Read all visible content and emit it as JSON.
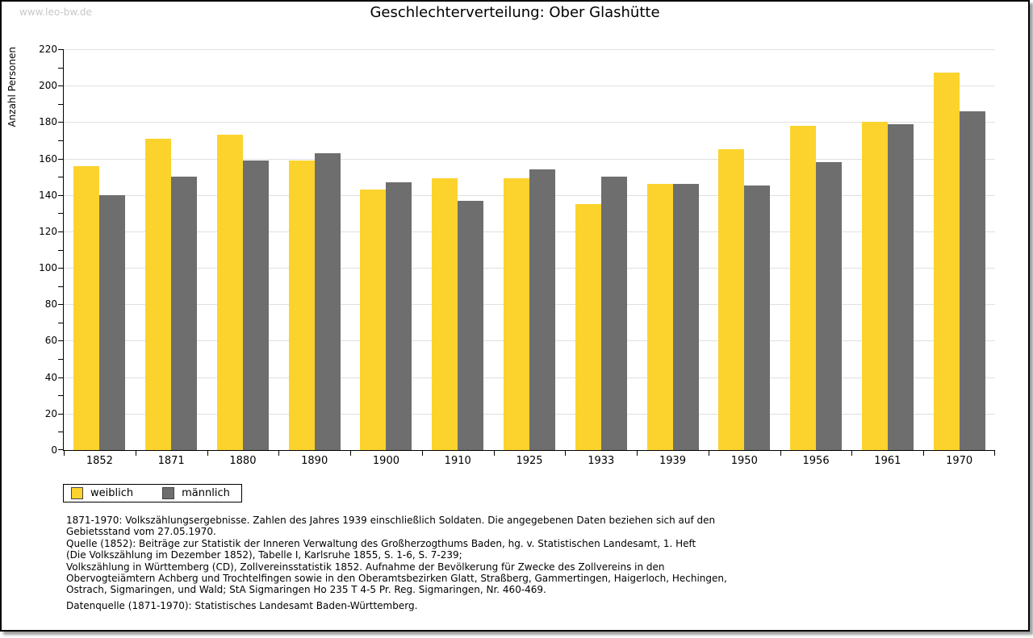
{
  "watermark": "www.leo-bw.de",
  "chart_data": {
    "type": "bar",
    "title": "Geschlechterverteilung: Ober Glashütte",
    "ylabel": "Anzahl Personen",
    "xlabel": "",
    "ylim": [
      0,
      220
    ],
    "ytick_step": 20,
    "yminor_step": 10,
    "grid": true,
    "legend_position": "bottom-left",
    "categories": [
      "1852",
      "1871",
      "1880",
      "1890",
      "1900",
      "1910",
      "1925",
      "1933",
      "1939",
      "1950",
      "1956",
      "1961",
      "1970"
    ],
    "series": [
      {
        "name": "weiblich",
        "color": "#FCD32D",
        "values": [
          156,
          171,
          173,
          159,
          143,
          149,
          149,
          135,
          146,
          165,
          178,
          180,
          207
        ]
      },
      {
        "name": "männlich",
        "color": "#6E6E6E",
        "values": [
          140,
          150,
          159,
          163,
          147,
          137,
          154,
          150,
          146,
          145,
          158,
          179,
          186
        ]
      }
    ]
  },
  "footer": {
    "lines": [
      "1871-1970: Volkszählungsergebnisse. Zahlen des Jahres 1939 einschließlich Soldaten. Die angegebenen Daten beziehen sich auf den",
      "Gebietsstand vom 27.05.1970.",
      "Quelle (1852): Beiträge zur Statistik der Inneren Verwaltung des Großherzogthums Baden, hg. v. Statistischen Landesamt, 1. Heft",
      "(Die Volkszählung im Dezember 1852), Tabelle I, Karlsruhe 1855, S. 1-6, S. 7-239;",
      "Volkszählung in Württemberg (CD), Zollvereinsstatistik 1852. Aufnahme der Bevölkerung für Zwecke des Zollvereins in den",
      "Obervogteiämtern Achberg und Trochtelfingen sowie in den Oberamtsbezirken Glatt, Straßberg, Gammertingen, Haigerloch, Hechingen,",
      "Ostrach, Sigmaringen, und Wald; StA Sigmaringen Ho 235 T 4-5 Pr. Reg. Sigmaringen, Nr. 460-469."
    ],
    "datasource": "Datenquelle (1871-1970): Statistisches Landesamt Baden-Württemberg."
  },
  "colors": {
    "gridline": "#E0E0E0",
    "axis": "#000000",
    "watermark": "#C8C8C8",
    "frame_border": "#000000",
    "frame_shadow": "#9E9E9E"
  }
}
